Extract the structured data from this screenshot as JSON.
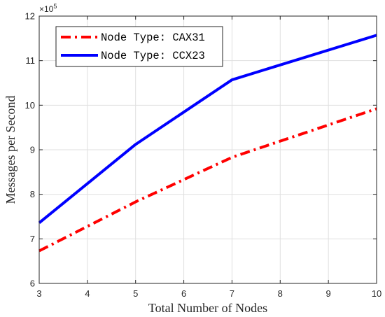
{
  "chart_data": {
    "type": "line",
    "title": "",
    "xlabel": "Total Number of Nodes",
    "ylabel": "Messages per Second",
    "y_multiplier": "×10",
    "y_multiplier_exponent": "5",
    "xlim": [
      3,
      10
    ],
    "ylim": [
      6,
      12
    ],
    "xticks": [
      3,
      4,
      5,
      6,
      7,
      8,
      9,
      10
    ],
    "yticks": [
      6,
      7,
      8,
      9,
      10,
      11,
      12
    ],
    "grid": true,
    "legend_position": "top-left",
    "series": [
      {
        "name": "Node Type: CAX31",
        "color": "#ff0000",
        "line_style": "dash-dot",
        "x": [
          3,
          5,
          7,
          10
        ],
        "y": [
          6.73,
          7.83,
          8.83,
          9.92
        ]
      },
      {
        "name": "Node Type: CCX23",
        "color": "#0000ff",
        "line_style": "solid",
        "x": [
          3,
          5,
          7,
          10
        ],
        "y": [
          7.36,
          9.12,
          10.57,
          11.57
        ]
      }
    ]
  }
}
